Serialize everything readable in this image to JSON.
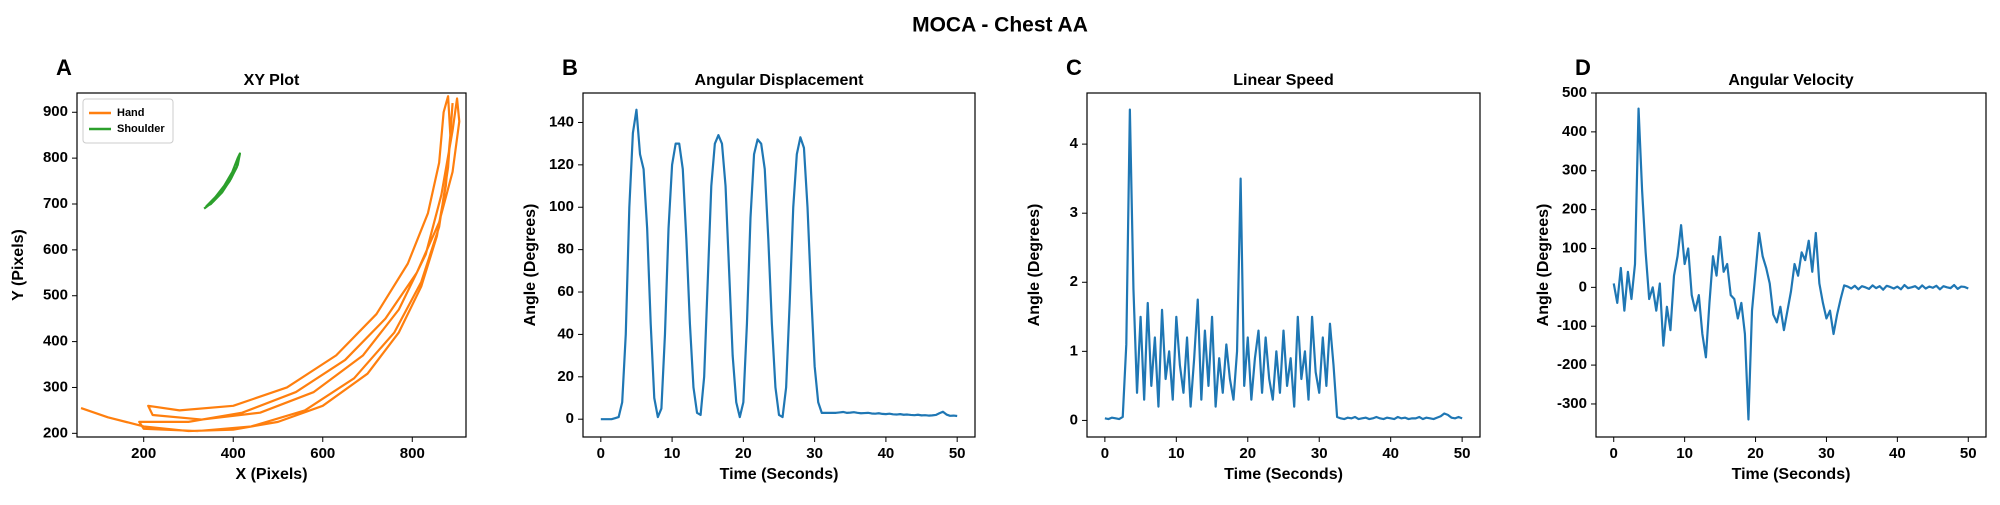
{
  "title": "MOCA - Chest AA",
  "chart_data": [
    {
      "type": "line",
      "panel": "A",
      "title": "XY Plot",
      "x_label": "X (Pixels)",
      "y_label": "Y (Pixels)",
      "xlim": [
        51,
        920
      ],
      "ylim": [
        192,
        942
      ],
      "xticks": [
        200,
        400,
        600,
        800
      ],
      "yticks": [
        200,
        300,
        400,
        500,
        600,
        700,
        800,
        900
      ],
      "legend": "upper left",
      "series": [
        {
          "name": "Hand",
          "color": "#ff7f0e",
          "x": [
            60,
            120,
            200,
            300,
            400,
            500,
            600,
            700,
            770,
            820,
            855,
            875,
            885,
            880,
            870,
            860,
            835,
            790,
            720,
            630,
            520,
            400,
            280,
            210,
            220,
            330,
            460,
            580,
            690,
            770,
            830,
            865,
            890,
            900,
            905,
            890,
            860,
            810,
            740,
            650,
            540,
            420,
            300,
            190,
            200,
            320,
            440,
            560,
            670,
            760,
            820,
            860,
            880,
            890
          ],
          "values": [
            255,
            235,
            215,
            205,
            208,
            225,
            260,
            330,
            420,
            520,
            630,
            740,
            850,
            935,
            900,
            790,
            680,
            570,
            460,
            370,
            300,
            260,
            250,
            260,
            240,
            230,
            245,
            290,
            370,
            470,
            590,
            720,
            860,
            930,
            880,
            770,
            660,
            550,
            450,
            360,
            290,
            245,
            225,
            225,
            210,
            205,
            215,
            250,
            320,
            420,
            530,
            650,
            780,
            920
          ]
        },
        {
          "name": "Shoulder",
          "color": "#2ca02c",
          "x": [
            335,
            355,
            375,
            395,
            410,
            415,
            410,
            398,
            380,
            360,
            340,
            350,
            372,
            392,
            408,
            412
          ],
          "values": [
            690,
            705,
            725,
            755,
            785,
            810,
            800,
            770,
            740,
            715,
            695,
            700,
            722,
            750,
            780,
            800
          ]
        }
      ]
    },
    {
      "type": "line",
      "panel": "B",
      "title": "Angular Displacement",
      "x_label": "Time (Seconds)",
      "y_label": "Angle (Degrees)",
      "xlim": [
        -2.5,
        52.5
      ],
      "ylim": [
        -8.4,
        153.9
      ],
      "xticks": [
        0,
        10,
        20,
        30,
        40,
        50
      ],
      "yticks": [
        0,
        20,
        40,
        60,
        80,
        100,
        120,
        140
      ],
      "x": [
        0,
        0.5,
        1,
        1.5,
        2,
        2.5,
        3,
        3.5,
        4,
        4.5,
        5,
        5.5,
        6,
        6.5,
        7,
        7.5,
        8,
        8.5,
        9,
        9.5,
        10,
        10.5,
        11,
        11.5,
        12,
        12.5,
        13,
        13.5,
        14,
        14.5,
        15,
        15.5,
        16,
        16.5,
        17,
        17.5,
        18,
        18.5,
        19,
        19.5,
        20,
        20.5,
        21,
        21.5,
        22,
        22.5,
        23,
        23.5,
        24,
        24.5,
        25,
        25.5,
        26,
        26.5,
        27,
        27.5,
        28,
        28.5,
        29,
        29.5,
        30,
        30.5,
        31,
        31.5,
        32,
        32.5,
        33,
        33.5,
        34,
        34.5,
        35,
        35.5,
        36,
        36.5,
        37,
        37.5,
        38,
        38.5,
        39,
        39.5,
        40,
        40.5,
        41,
        41.5,
        42,
        42.5,
        43,
        43.5,
        44,
        44.5,
        45,
        45.5,
        46,
        46.5,
        47,
        47.5,
        48,
        48.5,
        49,
        49.5,
        50
      ],
      "series": [
        {
          "color": "#1f77b4",
          "values": [
            0,
            0,
            0,
            0,
            0.5,
            1,
            8,
            40,
            100,
            135,
            146,
            125,
            118,
            90,
            45,
            10,
            1,
            5,
            40,
            90,
            120,
            130,
            130,
            118,
            85,
            45,
            15,
            3,
            2,
            20,
            65,
            110,
            130,
            134,
            130,
            110,
            70,
            30,
            8,
            1,
            8,
            45,
            95,
            125,
            132,
            130,
            118,
            85,
            45,
            15,
            2,
            1,
            15,
            55,
            100,
            125,
            133,
            128,
            100,
            60,
            25,
            8,
            3,
            3,
            3,
            3,
            3,
            3.2,
            3.4,
            3,
            3.1,
            3.3,
            3,
            2.8,
            2.9,
            3,
            2.7,
            2.6,
            2.8,
            2.5,
            2.4,
            2.6,
            2.3,
            2.2,
            2.4,
            2.1,
            2.2,
            2,
            1.9,
            2.1,
            1.8,
            1.9,
            1.7,
            1.8,
            2,
            2.8,
            3.5,
            2.2,
            1.6,
            1.7,
            1.5
          ]
        }
      ]
    },
    {
      "type": "line",
      "panel": "C",
      "title": "Linear Speed",
      "x_label": "Time (Seconds)",
      "y_label": "Angle (Degrees)",
      "xlim": [
        -2.5,
        52.5
      ],
      "ylim": [
        -0.24,
        4.74
      ],
      "xticks": [
        0,
        10,
        20,
        30,
        40,
        50
      ],
      "yticks": [
        0,
        1,
        2,
        3,
        4
      ],
      "x": [
        0,
        0.5,
        1,
        1.5,
        2,
        2.5,
        3,
        3.5,
        4,
        4.5,
        5,
        5.5,
        6,
        6.5,
        7,
        7.5,
        8,
        8.5,
        9,
        9.5,
        10,
        10.5,
        11,
        11.5,
        12,
        12.5,
        13,
        13.5,
        14,
        14.5,
        15,
        15.5,
        16,
        16.5,
        17,
        17.5,
        18,
        18.5,
        19,
        19.5,
        20,
        20.5,
        21,
        21.5,
        22,
        22.5,
        23,
        23.5,
        24,
        24.5,
        25,
        25.5,
        26,
        26.5,
        27,
        27.5,
        28,
        28.5,
        29,
        29.5,
        30,
        30.5,
        31,
        31.5,
        32,
        32.5,
        33,
        33.5,
        34,
        34.5,
        35,
        35.5,
        36,
        36.5,
        37,
        37.5,
        38,
        38.5,
        39,
        39.5,
        40,
        40.5,
        41,
        41.5,
        42,
        42.5,
        43,
        43.5,
        44,
        44.5,
        45,
        45.5,
        46,
        46.5,
        47,
        47.5,
        48,
        48.5,
        49,
        49.5,
        50
      ],
      "series": [
        {
          "color": "#1f77b4",
          "values": [
            0.03,
            0.02,
            0.04,
            0.03,
            0.02,
            0.05,
            1.1,
            4.5,
            1.9,
            0.4,
            1.5,
            0.3,
            1.7,
            0.5,
            1.2,
            0.2,
            1.6,
            0.6,
            1.0,
            0.3,
            1.5,
            0.8,
            0.4,
            1.2,
            0.2,
            0.9,
            1.75,
            0.3,
            1.3,
            0.5,
            1.5,
            0.2,
            0.9,
            0.4,
            1.1,
            0.6,
            0.3,
            1.0,
            3.5,
            0.5,
            1.2,
            0.3,
            0.9,
            1.3,
            0.4,
            1.2,
            0.6,
            0.3,
            1.0,
            0.4,
            1.3,
            0.5,
            0.9,
            0.2,
            1.5,
            0.6,
            1.0,
            0.3,
            1.5,
            0.7,
            0.4,
            1.2,
            0.5,
            1.4,
            0.8,
            0.05,
            0.03,
            0.02,
            0.04,
            0.03,
            0.05,
            0.02,
            0.03,
            0.04,
            0.02,
            0.03,
            0.05,
            0.03,
            0.02,
            0.04,
            0.03,
            0.02,
            0.05,
            0.03,
            0.04,
            0.02,
            0.03,
            0.03,
            0.05,
            0.02,
            0.04,
            0.03,
            0.02,
            0.04,
            0.06,
            0.1,
            0.08,
            0.04,
            0.03,
            0.05,
            0.03
          ]
        }
      ]
    },
    {
      "type": "line",
      "panel": "D",
      "title": "Angular Velocity",
      "x_label": "Time (Seconds)",
      "y_label": "Angle (Degrees)",
      "xlim": [
        -2.5,
        52.5
      ],
      "ylim": [
        -385,
        500
      ],
      "xticks": [
        0,
        10,
        20,
        30,
        40,
        50
      ],
      "yticks": [
        -300,
        -200,
        -100,
        0,
        100,
        200,
        300,
        400,
        500
      ],
      "x": [
        0,
        0.5,
        1,
        1.5,
        2,
        2.5,
        3,
        3.5,
        4,
        4.5,
        5,
        5.5,
        6,
        6.5,
        7,
        7.5,
        8,
        8.5,
        9,
        9.5,
        10,
        10.5,
        11,
        11.5,
        12,
        12.5,
        13,
        13.5,
        14,
        14.5,
        15,
        15.5,
        16,
        16.5,
        17,
        17.5,
        18,
        18.5,
        19,
        19.5,
        20,
        20.5,
        21,
        21.5,
        22,
        22.5,
        23,
        23.5,
        24,
        24.5,
        25,
        25.5,
        26,
        26.5,
        27,
        27.5,
        28,
        28.5,
        29,
        29.5,
        30,
        30.5,
        31,
        31.5,
        32,
        32.5,
        33,
        33.5,
        34,
        34.5,
        35,
        35.5,
        36,
        36.5,
        37,
        37.5,
        38,
        38.5,
        39,
        39.5,
        40,
        40.5,
        41,
        41.5,
        42,
        42.5,
        43,
        43.5,
        44,
        44.5,
        45,
        45.5,
        46,
        46.5,
        47,
        47.5,
        48,
        48.5,
        49,
        49.5,
        50
      ],
      "series": [
        {
          "color": "#1f77b4",
          "values": [
            10,
            -40,
            50,
            -60,
            40,
            -30,
            60,
            460,
            250,
            90,
            -30,
            0,
            -60,
            10,
            -150,
            -50,
            -110,
            30,
            80,
            160,
            60,
            100,
            -20,
            -60,
            -20,
            -120,
            -180,
            -40,
            80,
            30,
            130,
            40,
            60,
            -20,
            -30,
            -80,
            -40,
            -120,
            -340,
            -60,
            40,
            140,
            80,
            50,
            10,
            -70,
            -90,
            -50,
            -110,
            -60,
            -10,
            60,
            30,
            90,
            70,
            120,
            40,
            140,
            10,
            -40,
            -80,
            -60,
            -120,
            -70,
            -30,
            5,
            2,
            -3,
            4,
            -5,
            3,
            0,
            -4,
            5,
            -2,
            3,
            -6,
            4,
            1,
            -3,
            2,
            -5,
            6,
            -2,
            0,
            3,
            -4,
            5,
            -3,
            2,
            -1,
            4,
            -5,
            3,
            0,
            -2,
            6,
            -4,
            2,
            1,
            -3
          ]
        }
      ]
    }
  ]
}
